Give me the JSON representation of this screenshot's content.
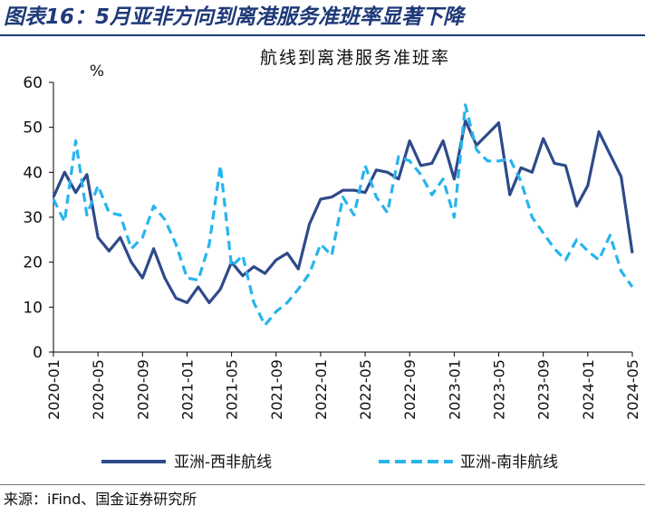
{
  "figure_title": "图表16：5月亚非方向到离港服务准班率显著下降",
  "source": "来源：iFind、国金证券研究所",
  "chart_data": {
    "type": "line",
    "title": "航线到离港服务准班率",
    "unit": "%",
    "ylim": [
      0,
      60
    ],
    "yticks": [
      0,
      10,
      20,
      30,
      40,
      50,
      60
    ],
    "x": [
      "2020-01",
      "2020-02",
      "2020-03",
      "2020-04",
      "2020-05",
      "2020-06",
      "2020-07",
      "2020-08",
      "2020-09",
      "2020-10",
      "2020-11",
      "2020-12",
      "2021-01",
      "2021-02",
      "2021-03",
      "2021-04",
      "2021-05",
      "2021-06",
      "2021-07",
      "2021-08",
      "2021-09",
      "2021-10",
      "2021-11",
      "2021-12",
      "2022-01",
      "2022-02",
      "2022-03",
      "2022-04",
      "2022-05",
      "2022-06",
      "2022-07",
      "2022-08",
      "2022-09",
      "2022-10",
      "2022-11",
      "2022-12",
      "2023-01",
      "2023-02",
      "2023-03",
      "2023-04",
      "2023-05",
      "2023-06",
      "2023-07",
      "2023-08",
      "2023-09",
      "2023-10",
      "2023-11",
      "2023-12",
      "2024-01",
      "2024-02",
      "2024-03",
      "2024-04",
      "2024-05"
    ],
    "xtick_labels": [
      "2020-01",
      "2020-05",
      "2020-09",
      "2021-01",
      "2021-05",
      "2021-09",
      "2022-01",
      "2022-05",
      "2022-09",
      "2023-01",
      "2023-05",
      "2023-09",
      "2024-01",
      "2024-05"
    ],
    "grid": false,
    "legend_position": "bottom",
    "series": [
      {
        "name": "亚洲-西非航线",
        "color": "#2e4a8a",
        "dash": "solid",
        "values": [
          34.5,
          40.0,
          35.5,
          39.5,
          25.5,
          22.5,
          25.5,
          20.0,
          16.5,
          23.0,
          16.5,
          12.0,
          11.0,
          14.5,
          11.0,
          14.0,
          20.0,
          17.0,
          19.0,
          17.5,
          20.5,
          22.0,
          18.5,
          28.5,
          34.0,
          34.5,
          36.0,
          36.0,
          35.5,
          40.5,
          40.0,
          38.5,
          47.0,
          41.5,
          42.0,
          47.0,
          38.5,
          51.5,
          46.0,
          48.5,
          51.0,
          35.0,
          41.0,
          40.0,
          47.5,
          42.0,
          41.5,
          32.5,
          37.0,
          49.0,
          44.0,
          39.0,
          22.0
        ]
      },
      {
        "name": "亚洲-南非航线",
        "color": "#27b4ee",
        "dash": "dashed",
        "values": [
          34.0,
          29.0,
          47.0,
          30.5,
          37.0,
          31.0,
          30.5,
          23.0,
          25.5,
          32.5,
          29.5,
          24.0,
          16.5,
          16.0,
          24.0,
          41.5,
          19.0,
          21.5,
          11.0,
          6.0,
          9.0,
          11.0,
          14.0,
          17.5,
          24.0,
          21.5,
          34.5,
          30.5,
          41.5,
          34.5,
          31.0,
          43.5,
          42.5,
          39.5,
          35.0,
          38.5,
          30.0,
          55.0,
          45.0,
          42.5,
          42.5,
          43.0,
          38.0,
          30.0,
          26.5,
          23.0,
          20.5,
          25.0,
          22.5,
          20.5,
          26.0,
          18.0,
          14.5
        ]
      }
    ]
  }
}
